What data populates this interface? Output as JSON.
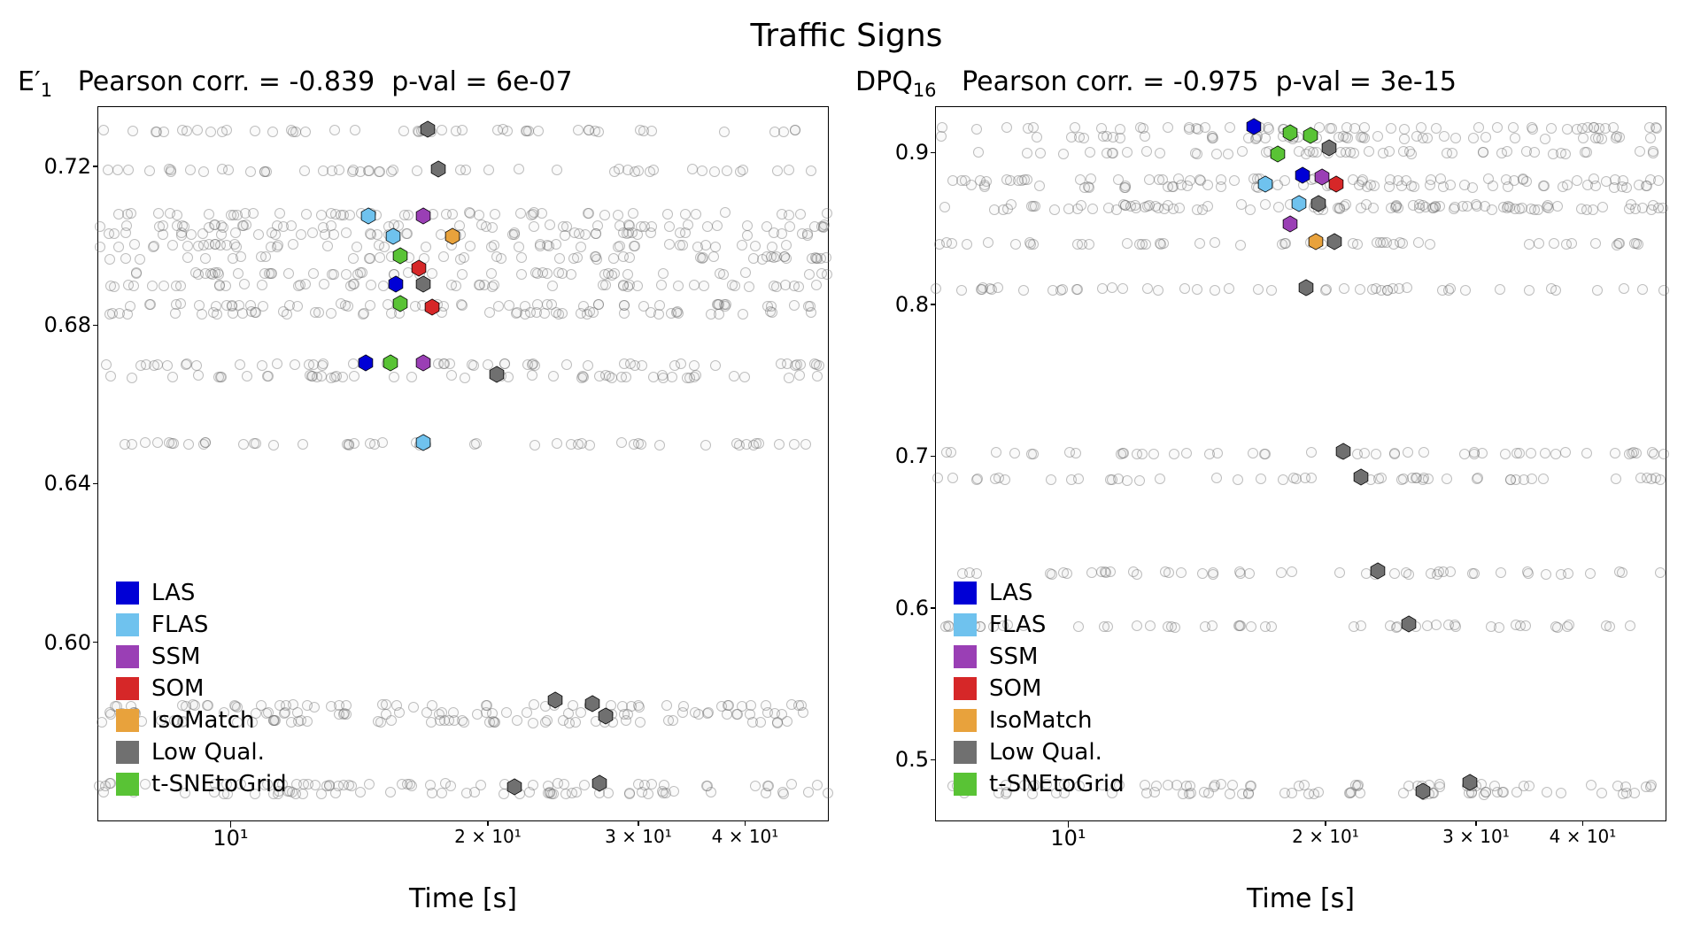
{
  "main_title": "Traffic Signs",
  "xlabel": "Time [s]",
  "background_color": "#ffffff",
  "hex_size": 14,
  "hex_stroke": "#000000",
  "hex_stroke_width": 0.8,
  "bg_dot_color": "rgba(120,120,120,0.35)",
  "legend": [
    {
      "label": "LAS",
      "color": "#0000d6"
    },
    {
      "label": "FLAS",
      "color": "#6fc2ee"
    },
    {
      "label": "SSM",
      "color": "#9a3fb5"
    },
    {
      "label": "SOM",
      "color": "#d62728"
    },
    {
      "label": "IsoMatch",
      "color": "#e8a23c"
    },
    {
      "label": "Low Qual.",
      "color": "#707070"
    },
    {
      "label": "t-SNEtoGrid",
      "color": "#59c335"
    }
  ],
  "panels": [
    {
      "ylabel_html": "E′<sub>1</sub>",
      "subtitle_parts": {
        "corr_label": "Pearson corr. =",
        "corr": "-0.839",
        "pval_label": "p-val =",
        "pval": "6e-07"
      },
      "type": "scatter",
      "xscale": "log",
      "xlim": [
        7,
        50
      ],
      "ylim": [
        0.555,
        0.735
      ],
      "yticks": [
        0.6,
        0.64,
        0.68,
        0.72
      ],
      "ytick_labels": [
        "0.60",
        "0.64",
        "0.68",
        "0.72"
      ],
      "xticks_major": [
        10
      ],
      "xtick_major_labels": [
        "10¹"
      ],
      "xticks_minor": [
        20,
        30,
        40
      ],
      "xtick_minor_labels": [
        "2 × 10¹",
        "3 × 10¹",
        "4 × 10¹"
      ],
      "bg_rows_y": [
        0.729,
        0.719,
        0.708,
        0.705,
        0.703,
        0.7,
        0.697,
        0.693,
        0.69,
        0.685,
        0.683,
        0.67,
        0.667,
        0.65,
        0.584,
        0.582,
        0.58,
        0.564,
        0.562
      ],
      "markers": [
        {
          "x": 17.0,
          "y": 0.729,
          "color": "#707070"
        },
        {
          "x": 17.5,
          "y": 0.719,
          "color": "#707070"
        },
        {
          "x": 14.5,
          "y": 0.707,
          "color": "#6fc2ee"
        },
        {
          "x": 16.8,
          "y": 0.707,
          "color": "#9a3fb5"
        },
        {
          "x": 15.5,
          "y": 0.702,
          "color": "#6fc2ee"
        },
        {
          "x": 18.2,
          "y": 0.702,
          "color": "#e8a23c"
        },
        {
          "x": 15.8,
          "y": 0.697,
          "color": "#59c335"
        },
        {
          "x": 16.6,
          "y": 0.694,
          "color": "#d62728"
        },
        {
          "x": 15.6,
          "y": 0.69,
          "color": "#0000d6"
        },
        {
          "x": 16.8,
          "y": 0.69,
          "color": "#707070"
        },
        {
          "x": 15.8,
          "y": 0.685,
          "color": "#59c335"
        },
        {
          "x": 17.2,
          "y": 0.684,
          "color": "#d62728"
        },
        {
          "x": 14.4,
          "y": 0.67,
          "color": "#0000d6"
        },
        {
          "x": 15.4,
          "y": 0.67,
          "color": "#59c335"
        },
        {
          "x": 16.8,
          "y": 0.67,
          "color": "#9a3fb5"
        },
        {
          "x": 20.5,
          "y": 0.667,
          "color": "#707070"
        },
        {
          "x": 16.8,
          "y": 0.65,
          "color": "#6fc2ee"
        },
        {
          "x": 24.0,
          "y": 0.585,
          "color": "#707070"
        },
        {
          "x": 26.5,
          "y": 0.584,
          "color": "#707070"
        },
        {
          "x": 27.5,
          "y": 0.581,
          "color": "#707070"
        },
        {
          "x": 21.5,
          "y": 0.563,
          "color": "#707070"
        },
        {
          "x": 27.0,
          "y": 0.564,
          "color": "#707070"
        }
      ]
    },
    {
      "ylabel_html": "DPQ<sub>16</sub>",
      "subtitle_parts": {
        "corr_label": "Pearson corr. =",
        "corr": "-0.975",
        "pval_label": "p-val =",
        "pval": "3e-15"
      },
      "type": "scatter",
      "xscale": "log",
      "xlim": [
        7,
        50
      ],
      "ylim": [
        0.46,
        0.93
      ],
      "yticks": [
        0.5,
        0.6,
        0.7,
        0.8,
        0.9
      ],
      "ytick_labels": [
        "0.5",
        "0.6",
        "0.7",
        "0.8",
        "0.9"
      ],
      "xticks_major": [
        10
      ],
      "xtick_major_labels": [
        "10¹"
      ],
      "xticks_minor": [
        20,
        30,
        40
      ],
      "xtick_minor_labels": [
        "2 × 10¹",
        "3 × 10¹",
        "4 × 10¹"
      ],
      "bg_rows_y": [
        0.916,
        0.91,
        0.9,
        0.882,
        0.878,
        0.865,
        0.863,
        0.84,
        0.81,
        0.702,
        0.685,
        0.623,
        0.588,
        0.483,
        0.478
      ],
      "markers": [
        {
          "x": 16.5,
          "y": 0.916,
          "color": "#0000d6"
        },
        {
          "x": 18.2,
          "y": 0.912,
          "color": "#59c335"
        },
        {
          "x": 19.2,
          "y": 0.91,
          "color": "#59c335"
        },
        {
          "x": 20.2,
          "y": 0.902,
          "color": "#707070"
        },
        {
          "x": 17.6,
          "y": 0.898,
          "color": "#59c335"
        },
        {
          "x": 18.8,
          "y": 0.884,
          "color": "#0000d6"
        },
        {
          "x": 19.8,
          "y": 0.883,
          "color": "#9a3fb5"
        },
        {
          "x": 17.0,
          "y": 0.878,
          "color": "#6fc2ee"
        },
        {
          "x": 20.6,
          "y": 0.878,
          "color": "#d62728"
        },
        {
          "x": 18.6,
          "y": 0.865,
          "color": "#6fc2ee"
        },
        {
          "x": 19.6,
          "y": 0.865,
          "color": "#707070"
        },
        {
          "x": 18.2,
          "y": 0.852,
          "color": "#9a3fb5"
        },
        {
          "x": 19.5,
          "y": 0.84,
          "color": "#e8a23c"
        },
        {
          "x": 20.5,
          "y": 0.84,
          "color": "#707070"
        },
        {
          "x": 19.0,
          "y": 0.81,
          "color": "#707070"
        },
        {
          "x": 21.0,
          "y": 0.702,
          "color": "#707070"
        },
        {
          "x": 22.0,
          "y": 0.685,
          "color": "#707070"
        },
        {
          "x": 23.0,
          "y": 0.623,
          "color": "#707070"
        },
        {
          "x": 25.0,
          "y": 0.588,
          "color": "#707070"
        },
        {
          "x": 29.5,
          "y": 0.484,
          "color": "#707070"
        },
        {
          "x": 26.0,
          "y": 0.478,
          "color": "#707070"
        }
      ]
    }
  ]
}
